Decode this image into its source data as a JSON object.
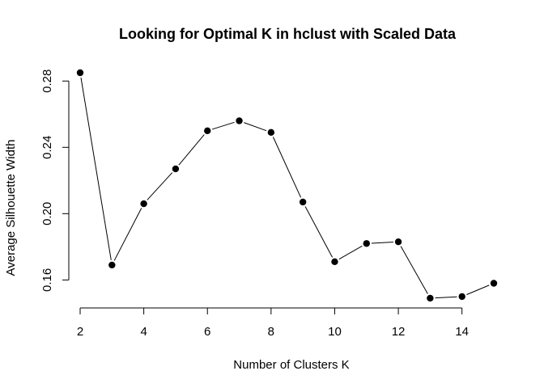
{
  "chart_data": {
    "type": "line",
    "title": "Looking for Optimal K in hclust with Scaled Data",
    "xlabel": "Number of Clusters K",
    "ylabel": "Average Silhouette Width",
    "x": [
      2,
      3,
      4,
      5,
      6,
      7,
      8,
      9,
      10,
      11,
      12,
      13,
      14,
      15
    ],
    "series": [
      {
        "values": [
          0.285,
          0.169,
          0.206,
          0.227,
          0.25,
          0.256,
          0.249,
          0.207,
          0.171,
          0.182,
          0.183,
          0.149,
          0.15,
          0.158
        ]
      }
    ],
    "xlim": [
      2,
      15
    ],
    "ylim": [
      0.148,
      0.285
    ],
    "x_ticks": [
      2,
      4,
      6,
      8,
      10,
      12,
      14
    ],
    "x_tick_labels": [
      "2",
      "4",
      "6",
      "8",
      "10",
      "12",
      "14"
    ],
    "y_ticks": [
      0.16,
      0.2,
      0.24,
      0.28
    ],
    "y_tick_labels": [
      "0.16",
      "0.20",
      "0.24",
      "0.28"
    ],
    "grid": false,
    "marker": "filled-circle",
    "line_color": "#000000",
    "marker_color": "#000000"
  }
}
